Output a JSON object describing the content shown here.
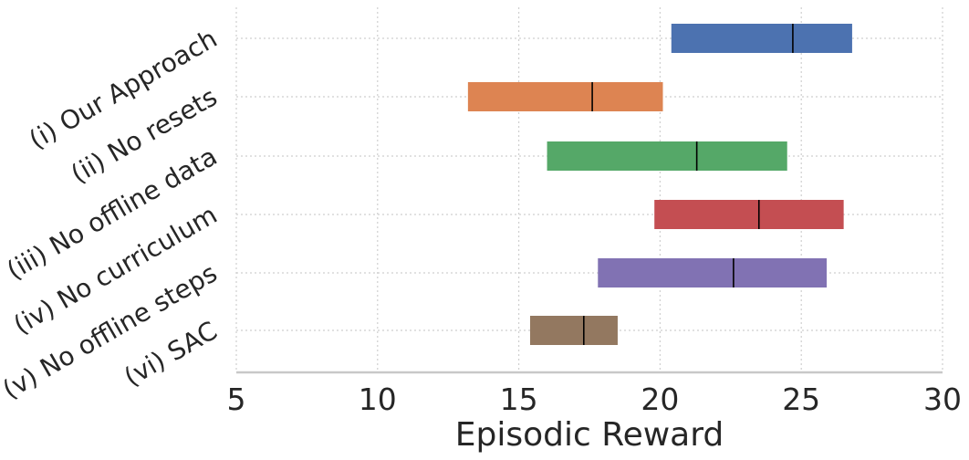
{
  "chart_data": {
    "type": "bar",
    "orientation": "horizontal",
    "xlabel": "Episodic Reward",
    "ylabel": "",
    "xlim": [
      5,
      30
    ],
    "xticks": [
      5,
      10,
      15,
      20,
      25,
      30
    ],
    "grid": true,
    "categories": [
      "(i) Our Approach",
      "(ii) No resets",
      "(iii) No offline data",
      "(iv) No curriculum",
      "(v) No offline steps",
      "(vi) SAC"
    ],
    "series": [
      {
        "ranges": [
          [
            20.4,
            26.8
          ],
          [
            13.2,
            20.1
          ],
          [
            16.0,
            24.5
          ],
          [
            19.8,
            26.5
          ],
          [
            17.8,
            25.9
          ],
          [
            15.4,
            18.5
          ]
        ],
        "medians": [
          24.7,
          17.6,
          21.3,
          23.5,
          22.6,
          17.3
        ],
        "colors": [
          "#4c72b0",
          "#dd8452",
          "#55a868",
          "#c44e52",
          "#8172b3",
          "#937860"
        ]
      }
    ]
  }
}
